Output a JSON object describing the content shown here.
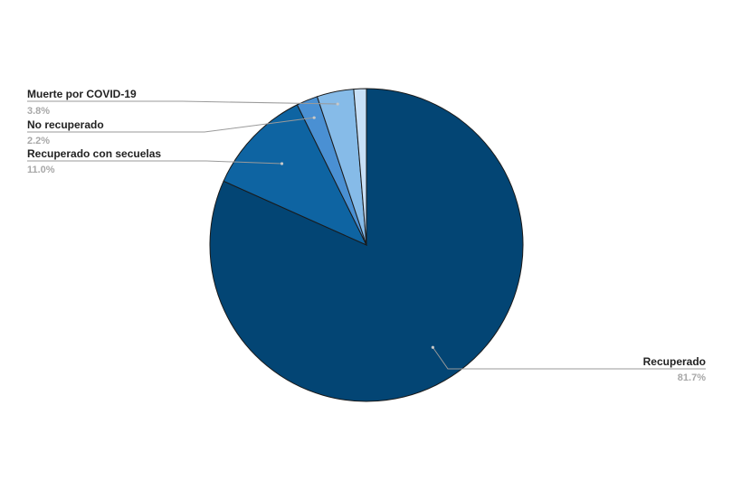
{
  "chart_data": {
    "type": "pie",
    "title": "",
    "legend": "none",
    "slices": [
      {
        "name": "Recuperado",
        "value": 81.7,
        "label": "81.7%",
        "color": "#034574"
      },
      {
        "name": "Recuperado con secuelas",
        "value": 11.0,
        "label": "11.0%",
        "color": "#0e64a2"
      },
      {
        "name": "No recuperado",
        "value": 2.2,
        "label": "2.2%",
        "color": "#4a90d3"
      },
      {
        "name": "Muerte por COVID-19",
        "value": 3.8,
        "label": "3.8%",
        "color": "#86bbe8"
      },
      {
        "name": "",
        "value": 1.3,
        "label": "",
        "color": "#c8e0f7"
      }
    ]
  }
}
